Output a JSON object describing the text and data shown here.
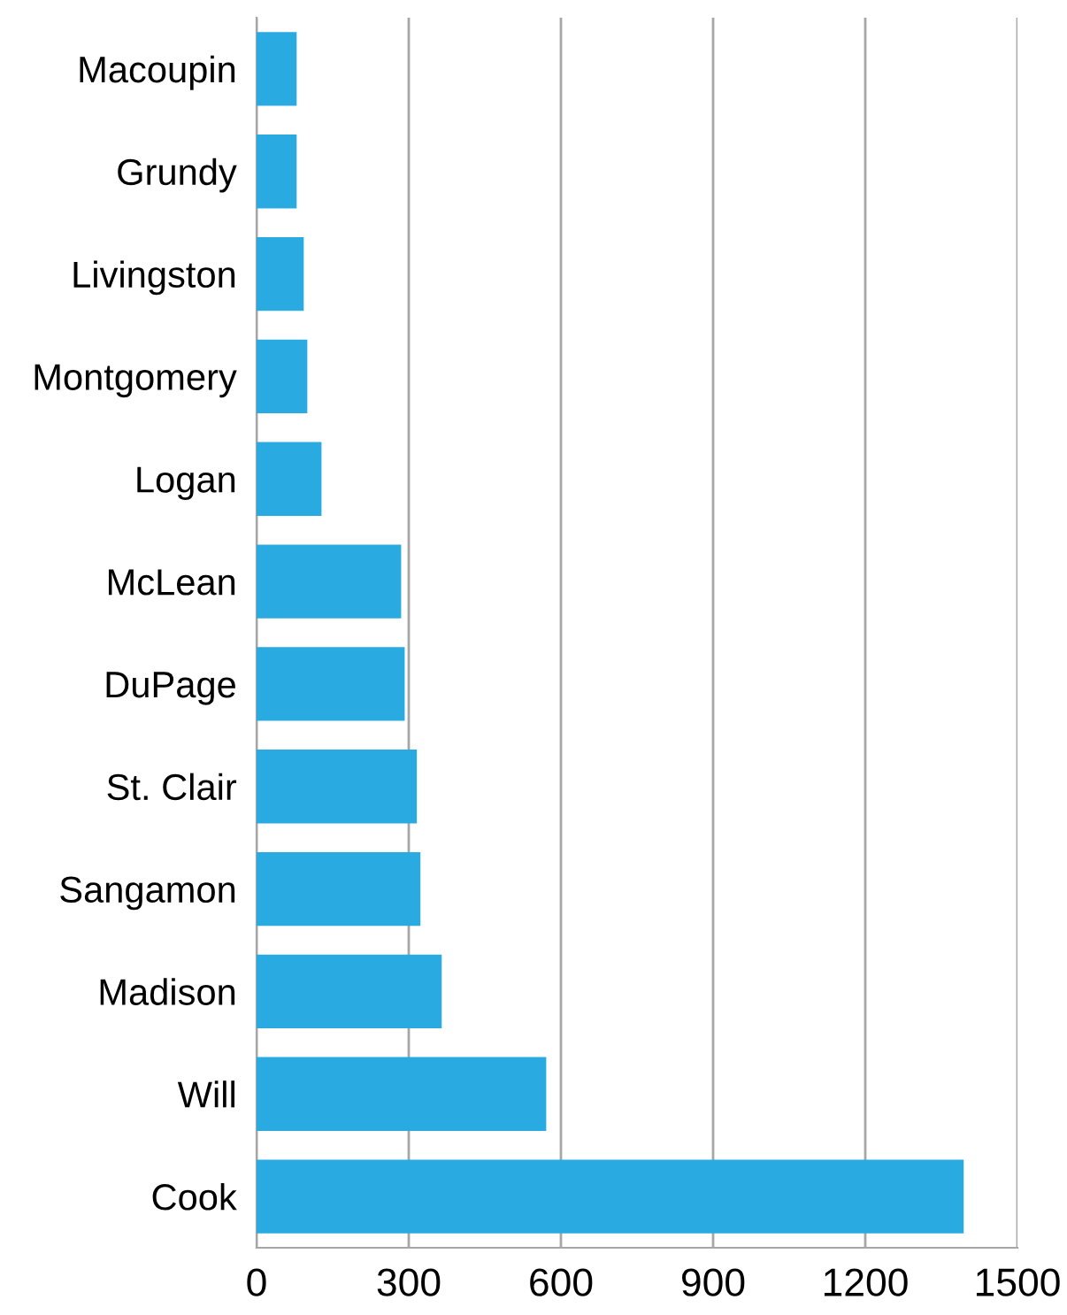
{
  "chart_data": {
    "type": "bar",
    "orientation": "horizontal",
    "categories": [
      "Macoupin",
      "Grundy",
      "Livingston",
      "Montgomery",
      "Logan",
      "McLean",
      "DuPage",
      "St. Clair",
      "Sangamon",
      "Madison",
      "Will",
      "Cook"
    ],
    "values": [
      79,
      79,
      93,
      100,
      128,
      285,
      292,
      316,
      323,
      365,
      571,
      1394
    ],
    "color": "#29aae1",
    "xlim": [
      0,
      1500
    ],
    "xticks": [
      0,
      300,
      600,
      900,
      1200,
      1500
    ],
    "grid": "x"
  }
}
